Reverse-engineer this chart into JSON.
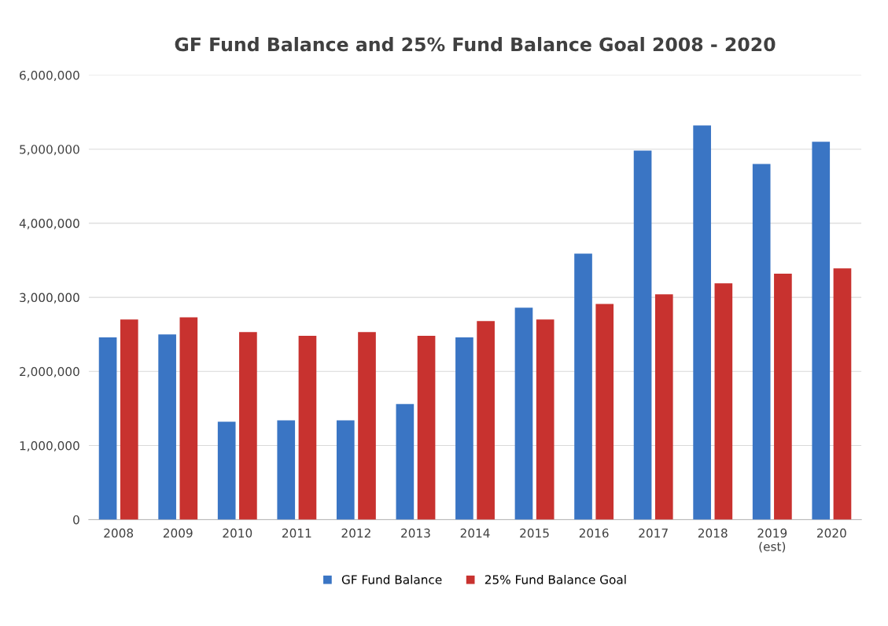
{
  "chart_data": {
    "type": "bar",
    "title": "GF Fund Balance and 25% Fund Balance Goal 2008 - 2020",
    "categories": [
      "2008",
      "2009",
      "2010",
      "2011",
      "2012",
      "2013",
      "2014",
      "2015",
      "2016",
      "2017",
      "2018",
      "2019\n(est)",
      "2020"
    ],
    "series": [
      {
        "name": "GF Fund Balance",
        "color": "#3a75c4",
        "values": [
          2460000,
          2500000,
          1320000,
          1340000,
          1340000,
          1560000,
          2460000,
          2860000,
          3590000,
          4980000,
          5320000,
          4800000,
          5100000
        ]
      },
      {
        "name": "25% Fund Balance Goal",
        "color": "#c8322f",
        "values": [
          2700000,
          2730000,
          2530000,
          2480000,
          2530000,
          2480000,
          2680000,
          2700000,
          2910000,
          3040000,
          3190000,
          3320000,
          3390000
        ]
      }
    ],
    "ylim": [
      0,
      6000000
    ],
    "yticks": [
      {
        "value": 0,
        "label": "0"
      },
      {
        "value": 1000000,
        "label": "1,000,000"
      },
      {
        "value": 2000000,
        "label": "2,000,000"
      },
      {
        "value": 3000000,
        "label": "3,000,000"
      },
      {
        "value": 4000000,
        "label": "4,000,000"
      },
      {
        "value": 5000000,
        "label": "5,000,000"
      },
      {
        "value": 6000000,
        "label": "6,000,000"
      }
    ],
    "grid": "y",
    "legend": "bottom"
  }
}
